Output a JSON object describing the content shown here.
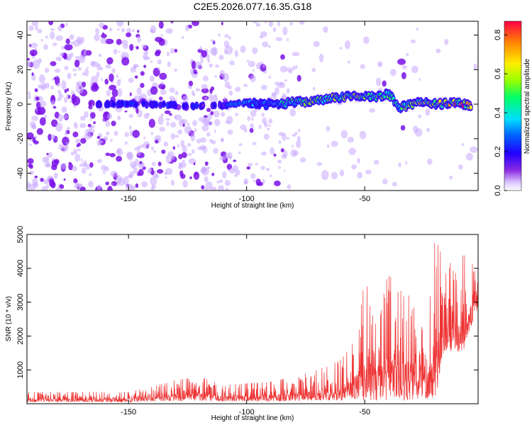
{
  "title": "C2E5.2026.077.16.35.G18",
  "colors": {
    "snr_line": "#ee3333",
    "spectrogram_low": "#c9a8ff",
    "spectrogram_mid": "#7a10e8"
  },
  "chart_data": [
    {
      "type": "heatmap",
      "name": "spectrogram",
      "xlabel": "Height of straight line (km)",
      "ylabel": "Frequency (Hz)",
      "xlim": [
        -193,
        -2
      ],
      "ylim": [
        -50,
        48
      ],
      "xticks": [
        -150,
        -100,
        -50
      ],
      "xtick_labels": [
        "-150",
        "-100",
        "-50"
      ],
      "yticks": [
        -40,
        -20,
        0,
        20,
        40
      ],
      "ytick_labels": [
        "-40",
        "-20",
        "0",
        "20",
        "40"
      ],
      "ridge": {
        "description_values": "strong signal band near 0 Hz from about -100 km to -2 km",
        "points": [
          {
            "x": -163,
            "y": 0,
            "amp": 0.2
          },
          {
            "x": -140,
            "y": 0,
            "amp": 0.25
          },
          {
            "x": -125,
            "y": -1,
            "amp": 0.2
          },
          {
            "x": -111,
            "y": -1,
            "amp": 0.2
          },
          {
            "x": -100,
            "y": 1,
            "amp": 0.3
          },
          {
            "x": -90,
            "y": 0,
            "amp": 0.35
          },
          {
            "x": -80,
            "y": 1,
            "amp": 0.45
          },
          {
            "x": -70,
            "y": 2,
            "amp": 0.5
          },
          {
            "x": -60,
            "y": 4,
            "amp": 0.5
          },
          {
            "x": -53,
            "y": 5,
            "amp": 0.55
          },
          {
            "x": -45,
            "y": 4,
            "amp": 0.5
          },
          {
            "x": -40,
            "y": 6,
            "amp": 0.5
          },
          {
            "x": -35,
            "y": -2,
            "amp": 0.45
          },
          {
            "x": -28,
            "y": 1,
            "amp": 0.6
          },
          {
            "x": -20,
            "y": 0,
            "amp": 0.55
          },
          {
            "x": -12,
            "y": 1,
            "amp": 0.7
          },
          {
            "x": -5,
            "y": -1,
            "amp": 0.75
          }
        ]
      },
      "colorbar": {
        "label": "Normalized spectral amplitude",
        "range": [
          0.0,
          0.87
        ],
        "ticks": [
          0.0,
          0.2,
          0.4,
          0.6,
          0.8
        ],
        "tick_labels": [
          "0.0",
          "0.2",
          "0.4",
          "0.6",
          "0.8"
        ]
      }
    },
    {
      "type": "line",
      "name": "snr",
      "xlabel": "Height of straight line (km)",
      "ylabel": "SNR (10 * v/v)",
      "xlim": [
        -193,
        -2
      ],
      "ylim": [
        0,
        5000
      ],
      "xticks": [
        -150,
        -100,
        -50
      ],
      "xtick_labels": [
        "-150",
        "-100",
        "-50"
      ],
      "yticks": [
        1000,
        2000,
        3000,
        4000,
        5000
      ],
      "ytick_labels": [
        "1000",
        "2000",
        "3000",
        "4000",
        "5000"
      ],
      "envelope": [
        {
          "x": -193,
          "low": 50,
          "high": 350
        },
        {
          "x": -150,
          "low": 50,
          "high": 350
        },
        {
          "x": -140,
          "low": 80,
          "high": 500
        },
        {
          "x": -130,
          "low": 80,
          "high": 700
        },
        {
          "x": -120,
          "low": 80,
          "high": 800
        },
        {
          "x": -110,
          "low": 70,
          "high": 550
        },
        {
          "x": -100,
          "low": 70,
          "high": 600
        },
        {
          "x": -90,
          "low": 70,
          "high": 650
        },
        {
          "x": -80,
          "low": 80,
          "high": 800
        },
        {
          "x": -70,
          "low": 100,
          "high": 1000
        },
        {
          "x": -60,
          "low": 100,
          "high": 1300
        },
        {
          "x": -55,
          "low": 150,
          "high": 1800
        },
        {
          "x": -50,
          "low": 100,
          "high": 3600
        },
        {
          "x": -45,
          "low": 100,
          "high": 2900
        },
        {
          "x": -40,
          "low": 100,
          "high": 3800
        },
        {
          "x": -35,
          "low": 100,
          "high": 3500
        },
        {
          "x": -30,
          "low": 100,
          "high": 3400
        },
        {
          "x": -25,
          "low": 100,
          "high": 3000
        },
        {
          "x": -20,
          "low": 200,
          "high": 4900
        },
        {
          "x": -16,
          "low": 1500,
          "high": 4100
        },
        {
          "x": -12,
          "low": 1500,
          "high": 4200
        },
        {
          "x": -8,
          "low": 1600,
          "high": 4400
        },
        {
          "x": -4,
          "low": 2500,
          "high": 4100
        },
        {
          "x": -2,
          "low": 2800,
          "high": 3500
        }
      ]
    }
  ]
}
